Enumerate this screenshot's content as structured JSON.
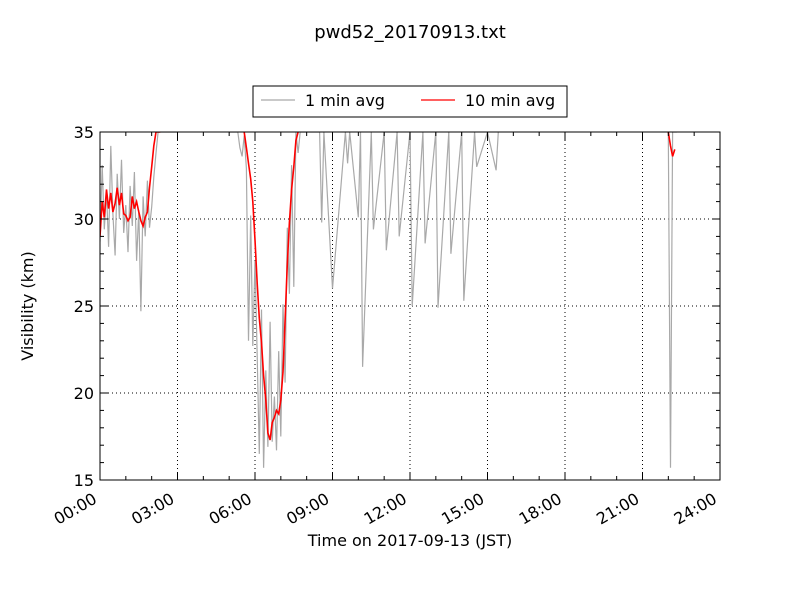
{
  "chart_data": {
    "type": "line",
    "title": "pwd52_20170913.txt",
    "xlabel": "Time on 2017-09-13 (JST)",
    "ylabel": "Visibility (km)",
    "xlim": [
      "00:00",
      "24:00"
    ],
    "ylim": [
      15,
      35
    ],
    "x_ticks": [
      "00:00",
      "03:00",
      "06:00",
      "09:00",
      "12:00",
      "15:00",
      "18:00",
      "21:00",
      "24:00"
    ],
    "y_ticks": [
      15,
      20,
      25,
      30,
      35
    ],
    "grid": true,
    "legend_position": "top-center",
    "series": [
      {
        "name": "1 min avg",
        "color": "#a9a9a9",
        "x": [
          "00:00",
          "00:05",
          "00:10",
          "00:15",
          "00:20",
          "00:25",
          "00:30",
          "00:35",
          "00:40",
          "00:45",
          "00:50",
          "00:55",
          "01:00",
          "01:05",
          "01:10",
          "01:15",
          "01:20",
          "01:25",
          "01:30",
          "01:35",
          "01:40",
          "01:45",
          "01:50",
          "01:55",
          "02:00",
          "02:05",
          "02:10",
          "02:15",
          "02:20",
          "02:25",
          "02:30",
          "02:35",
          "02:40",
          "02:45",
          "02:50",
          "02:55",
          "03:00",
          "05:00",
          "05:10",
          "05:20",
          "05:25",
          "05:30",
          "05:35",
          "05:40",
          "05:45",
          "05:50",
          "05:55",
          "06:00",
          "06:05",
          "06:10",
          "06:15",
          "06:20",
          "06:25",
          "06:30",
          "06:35",
          "06:40",
          "06:45",
          "06:50",
          "06:55",
          "07:00",
          "07:05",
          "07:10",
          "07:15",
          "07:20",
          "07:25",
          "07:30",
          "07:35",
          "07:40",
          "07:45",
          "07:50",
          "07:55",
          "08:00",
          "08:30",
          "08:35",
          "08:40",
          "09:00",
          "09:30",
          "09:35",
          "09:40",
          "10:00",
          "10:05",
          "10:10",
          "10:30",
          "10:35",
          "11:00",
          "11:05",
          "11:30",
          "11:35",
          "12:00",
          "12:05",
          "12:30",
          "12:35",
          "13:00",
          "13:05",
          "13:30",
          "13:35",
          "14:00",
          "14:05",
          "14:30",
          "14:35",
          "15:00",
          "15:20",
          "15:25",
          "22:00",
          "22:05",
          "22:10",
          "22:15",
          "22:20"
        ],
        "y": [
          28.7,
          33.1,
          29.4,
          31.6,
          28.4,
          34.2,
          30.3,
          27.9,
          32.6,
          30.0,
          33.4,
          29.2,
          30.8,
          28.1,
          31.9,
          29.6,
          32.7,
          27.6,
          30.5,
          24.7,
          31.3,
          29.0,
          32.2,
          29.5,
          30.7,
          32.4,
          33.8,
          35,
          35,
          35,
          35,
          35,
          35,
          35,
          35,
          35,
          35,
          35,
          35,
          35,
          34.1,
          33.6,
          34.8,
          32.9,
          23.0,
          30.2,
          22.7,
          27.6,
          22.1,
          16.5,
          24.8,
          15.7,
          21.3,
          16.9,
          24.1,
          17.2,
          19.8,
          16.7,
          22.4,
          17.5,
          25.1,
          20.6,
          29.5,
          25.7,
          33.1,
          26.1,
          35,
          33.8,
          35,
          35,
          35,
          35,
          35,
          29.8,
          35,
          26.0,
          35,
          33.2,
          35,
          30.1,
          35,
          21.5,
          35,
          29.4,
          35,
          28.2,
          35,
          29.0,
          35,
          25.0,
          35,
          28.6,
          35,
          24.9,
          35,
          28.0,
          35,
          25.3,
          35,
          33.0,
          35,
          32.8,
          35,
          35,
          15.7,
          35,
          35,
          35
        ],
        "note_values_at_35_are_above_axis": true
      },
      {
        "name": "10 min avg",
        "color": "#ff0000",
        "x": [
          "00:00",
          "00:05",
          "00:10",
          "00:15",
          "00:20",
          "00:25",
          "00:30",
          "00:35",
          "00:40",
          "00:45",
          "00:50",
          "00:55",
          "01:00",
          "01:05",
          "01:10",
          "01:15",
          "01:20",
          "01:25",
          "01:30",
          "01:35",
          "01:40",
          "01:45",
          "01:50",
          "01:55",
          "02:00",
          "02:05",
          "02:10",
          "02:15",
          "02:20",
          "05:35",
          "05:40",
          "05:45",
          "05:50",
          "05:55",
          "06:00",
          "06:05",
          "06:10",
          "06:15",
          "06:20",
          "06:25",
          "06:30",
          "06:35",
          "06:40",
          "06:45",
          "06:50",
          "06:55",
          "07:00",
          "07:05",
          "07:10",
          "07:15",
          "07:20",
          "07:25",
          "07:30",
          "07:35",
          "07:40",
          "22:00",
          "22:05",
          "22:10",
          "22:15"
        ],
        "y": [
          29.0,
          31.0,
          30.1,
          31.7,
          30.6,
          31.5,
          30.4,
          30.9,
          31.8,
          30.8,
          31.5,
          30.3,
          30.2,
          29.9,
          30.1,
          31.3,
          30.6,
          31.0,
          30.4,
          29.9,
          29.6,
          30.1,
          30.4,
          31.8,
          33.0,
          34.2,
          35,
          35,
          35,
          35,
          34.1,
          33.2,
          32.3,
          31.0,
          28.8,
          26.3,
          24.3,
          22.9,
          21.0,
          19.6,
          17.7,
          17.3,
          18.3,
          18.6,
          19.0,
          18.8,
          19.6,
          21.2,
          24.2,
          27.4,
          29.8,
          31.7,
          33.0,
          34.5,
          35,
          35,
          34.2,
          33.6,
          34.0
        ]
      }
    ]
  }
}
